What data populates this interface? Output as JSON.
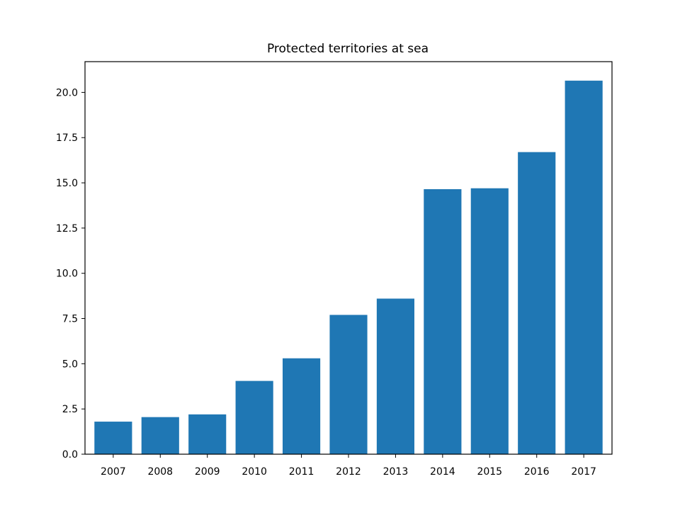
{
  "chart_data": {
    "type": "bar",
    "title": "Protected territories at sea",
    "xlabel": "",
    "ylabel": "",
    "categories": [
      "2007",
      "2008",
      "2009",
      "2010",
      "2011",
      "2012",
      "2013",
      "2014",
      "2015",
      "2016",
      "2017"
    ],
    "values": [
      1.8,
      2.05,
      2.2,
      4.05,
      5.3,
      7.7,
      8.6,
      14.65,
      14.7,
      16.7,
      20.65
    ],
    "ylim": [
      0,
      21.7
    ],
    "yticks": [
      0.0,
      2.5,
      5.0,
      7.5,
      10.0,
      12.5,
      15.0,
      17.5,
      20.0
    ],
    "ytick_labels": [
      "0.0",
      "2.5",
      "5.0",
      "7.5",
      "10.0",
      "12.5",
      "15.0",
      "17.5",
      "20.0"
    ],
    "bar_color": "#1f77b4",
    "grid": false,
    "legend": "none"
  }
}
